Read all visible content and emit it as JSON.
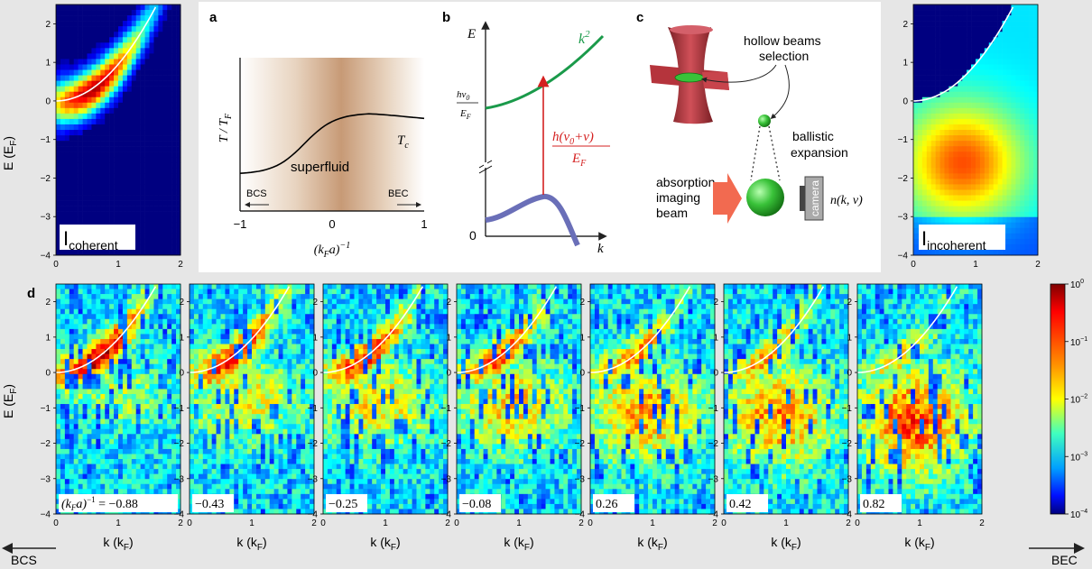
{
  "colors": {
    "background": "#e6e6e6",
    "panel_white": "#ffffff",
    "parabola": "#ffffff",
    "free_particle_curve": "#1a9a4a",
    "bound_state_curve": "#6a6fb8",
    "transition_arrow": "#d42020",
    "imaging_beam_arrow": "#f26a50",
    "cloud": "#39c239",
    "trap_beam": "#b5343c"
  },
  "icons": {
    "trap": "hollow-beam-trap-icon",
    "cloud": "atom-cloud-icon",
    "camera": "camera-icon",
    "beam": "imaging-beam-arrow-icon"
  },
  "panel_labels": {
    "a": "a",
    "b": "b",
    "c": "c",
    "d": "d"
  },
  "heatmap_axes": {
    "ylabel": "E (E",
    "ylabel_sub": "F",
    "ylabel_close": ")",
    "xlabel": "k (k",
    "xlabel_sub": "F",
    "xlabel_close": ")",
    "x_ticks": [
      "0",
      "1",
      "2"
    ],
    "y_ticks": [
      "2",
      "1",
      "0",
      "−1",
      "−2",
      "−3",
      "−4"
    ]
  },
  "top_maps": {
    "coherent": {
      "label": "I",
      "label_sub": "coherent"
    },
    "incoherent": {
      "label": "I",
      "label_sub": "incoherent"
    }
  },
  "colorbar": {
    "scale": "log",
    "range": [
      0.0001,
      1
    ],
    "ticks": [
      {
        "base": "10",
        "exp": "0"
      },
      {
        "base": "10",
        "exp": "−1"
      },
      {
        "base": "10",
        "exp": "−2"
      },
      {
        "base": "10",
        "exp": "−3"
      },
      {
        "base": "10",
        "exp": "−4"
      }
    ]
  },
  "panel_a": {
    "ylabel": "T / T",
    "ylabel_sub": "F",
    "xlabel": "(k",
    "xlabel_sub": "F",
    "xlabel_tail": "a)",
    "xlabel_sup": "−1",
    "x_ticks": [
      "−1",
      "0",
      "1"
    ],
    "region_label": "superfluid",
    "curve_label": "T",
    "curve_label_sub": "c",
    "left_arrow_label": "BCS",
    "right_arrow_label": "BEC",
    "x_range": [
      -1,
      1
    ]
  },
  "panel_b": {
    "ylabel": "E",
    "xlabel": "k",
    "origin": "0",
    "curve_label": "k",
    "curve_label_sup": "2",
    "offset_num": "hν",
    "offset_num_sub": "0",
    "offset_den": "E",
    "offset_den_sub": "F",
    "arrow_num": "h(ν",
    "arrow_num_sub": "0",
    "arrow_num_tail": "+ν)",
    "arrow_den": "E",
    "arrow_den_sub": "F"
  },
  "panel_c": {
    "selection_label_1": "hollow beams",
    "selection_label_2": "selection",
    "expansion_label_1": "ballistic",
    "expansion_label_2": "expansion",
    "beam_label_1": "absorption",
    "beam_label_2": "imaging",
    "beam_label_3": "beam",
    "camera_label": "camera",
    "readout": "n(k, ν)"
  },
  "panel_d": {
    "maps": [
      {
        "label_prefix": "(k",
        "label_sub": "F",
        "label_mid": "a)",
        "label_sup": "−1",
        "label_value": " = −0.88",
        "value": -0.88
      },
      {
        "label_prefix": "",
        "label_sub": "",
        "label_mid": "",
        "label_sup": "",
        "label_value": "−0.43",
        "value": -0.43
      },
      {
        "label_prefix": "",
        "label_sub": "",
        "label_mid": "",
        "label_sup": "",
        "label_value": "−0.25",
        "value": -0.25
      },
      {
        "label_prefix": "",
        "label_sub": "",
        "label_mid": "",
        "label_sup": "",
        "label_value": "−0.08",
        "value": -0.08
      },
      {
        "label_prefix": "",
        "label_sub": "",
        "label_mid": "",
        "label_sup": "",
        "label_value": "0.26",
        "value": 0.26
      },
      {
        "label_prefix": "",
        "label_sub": "",
        "label_mid": "",
        "label_sup": "",
        "label_value": "0.42",
        "value": 0.42
      },
      {
        "label_prefix": "",
        "label_sub": "",
        "label_mid": "",
        "label_sup": "",
        "label_value": "0.82",
        "value": 0.82
      }
    ],
    "bcs_label": "BCS",
    "bec_label": "BEC"
  }
}
